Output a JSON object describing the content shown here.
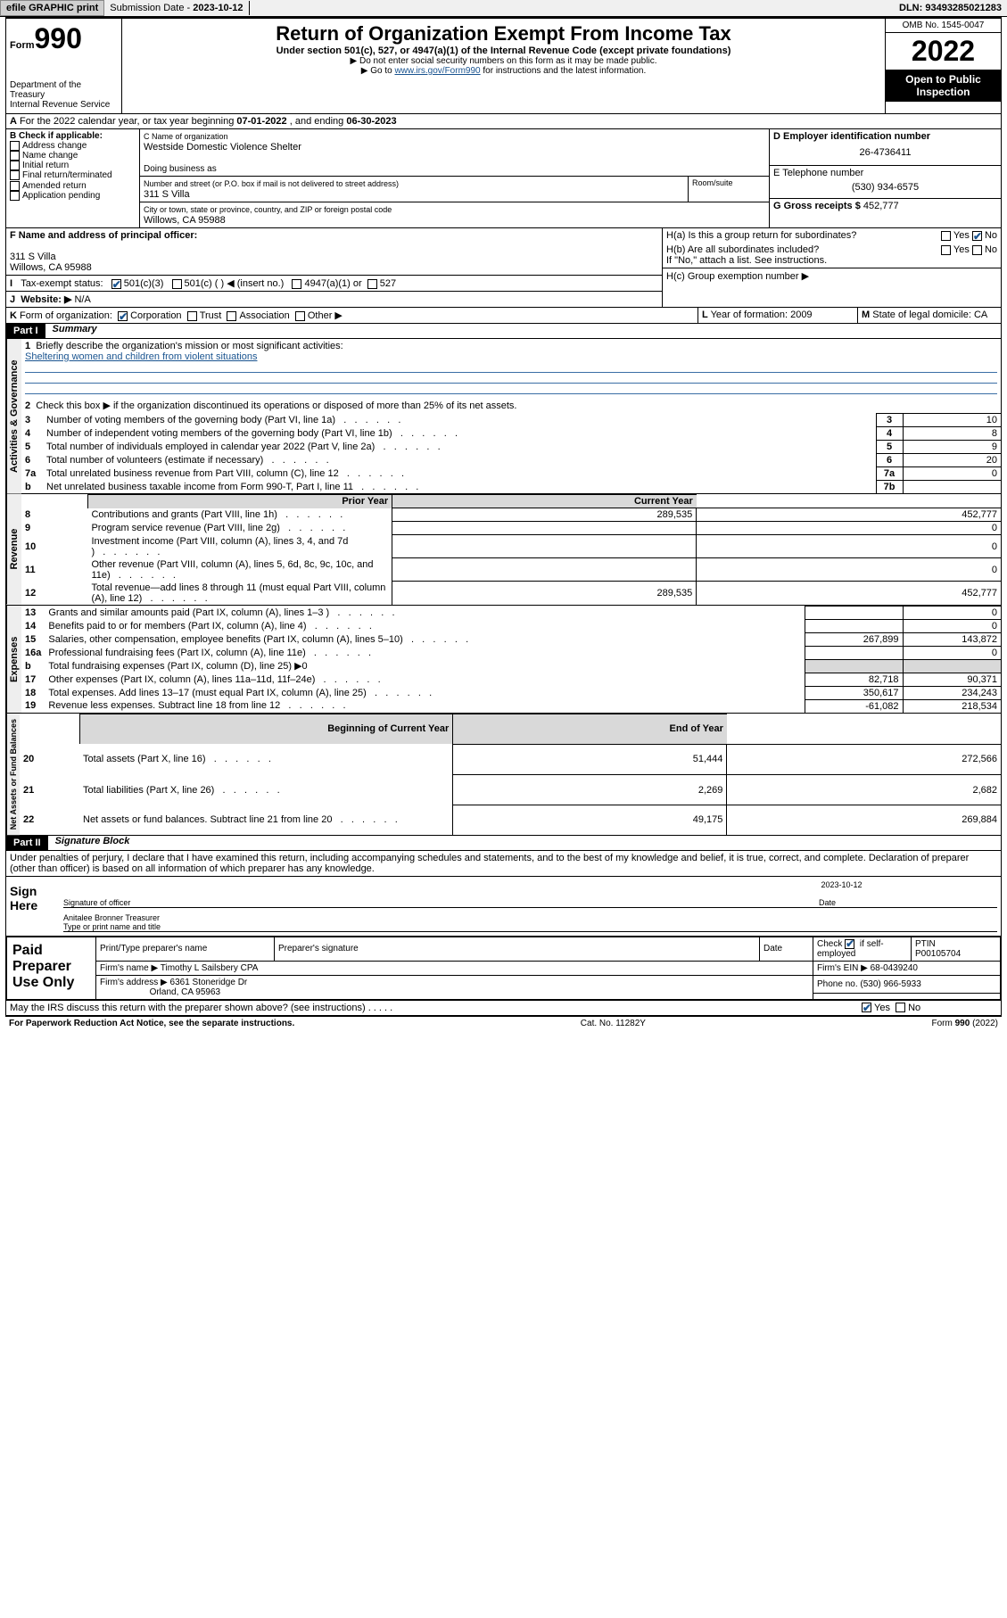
{
  "topbar": {
    "efile": "efile GRAPHIC print",
    "subdate_label": "Submission Date - ",
    "subdate": "2023-10-12",
    "dln_label": "DLN: ",
    "dln": "93493285021283"
  },
  "header": {
    "form_label": "Form",
    "form_num": "990",
    "dept": "Department of the Treasury",
    "irs": "Internal Revenue Service",
    "title": "Return of Organization Exempt From Income Tax",
    "subtitle": "Under section 501(c), 527, or 4947(a)(1) of the Internal Revenue Code (except private foundations)",
    "note1": "▶ Do not enter social security numbers on this form as it may be made public.",
    "note2_pre": "▶ Go to ",
    "note2_link": "www.irs.gov/Form990",
    "note2_post": " for instructions and the latest information.",
    "omb": "OMB No. 1545-0047",
    "year": "2022",
    "inspect": "Open to Public Inspection"
  },
  "A": {
    "text": "For the 2022 calendar year, or tax year beginning ",
    "begin": "07-01-2022",
    "mid": "   , and ending ",
    "end": "06-30-2023"
  },
  "B": {
    "label": "B Check if applicable:",
    "addr": "Address change",
    "name": "Name change",
    "init": "Initial return",
    "final": "Final return/terminated",
    "amend": "Amended return",
    "app": "Application pending"
  },
  "C": {
    "label": "C Name of organization",
    "name": "Westside Domestic Violence Shelter",
    "dba": "Doing business as",
    "street_label": "Number and street (or P.O. box if mail is not delivered to street address)",
    "room_label": "Room/suite",
    "street": "311 S Villa",
    "city_label": "City or town, state or province, country, and ZIP or foreign postal code",
    "city": "Willows, CA  95988"
  },
  "D": {
    "label": "D Employer identification number",
    "val": "26-4736411"
  },
  "E": {
    "label": "E Telephone number",
    "val": "(530) 934-6575"
  },
  "G": {
    "label": "G Gross receipts $ ",
    "val": "452,777"
  },
  "F": {
    "label": "F Name and address of principal officer:",
    "addr1": "311 S Villa",
    "addr2": "Willows, CA  95988"
  },
  "H": {
    "a": "H(a)  Is this a group return for subordinates?",
    "b": "H(b)  Are all subordinates included?",
    "b_note": "If \"No,\" attach a list. See instructions.",
    "c": "H(c)  Group exemption number ▶",
    "yes": "Yes",
    "no": "No"
  },
  "I": {
    "label": "Tax-exempt status:",
    "c1": "501(c)(3)",
    "c2": "501(c) (   ) ◀ (insert no.)",
    "c3": "4947(a)(1) or",
    "c4": "527"
  },
  "J": {
    "label": "Website: ▶",
    "val": "N/A"
  },
  "K": {
    "label": "Form of organization:",
    "corp": "Corporation",
    "trust": "Trust",
    "assoc": "Association",
    "other": "Other ▶"
  },
  "L": {
    "label": "Year of formation: ",
    "val": "2009"
  },
  "M": {
    "label": "State of legal domicile: ",
    "val": "CA"
  },
  "part1": {
    "label": "Part I",
    "title": "Summary"
  },
  "summary": {
    "q1": "Briefly describe the organization's mission or most significant activities:",
    "q1a": "Sheltering women and children from violent situations",
    "q2": "Check this box ▶       if the organization discontinued its operations or disposed of more than 25% of its net assets.",
    "rows": [
      {
        "n": "3",
        "d": "Number of voting members of the governing body (Part VI, line 1a)",
        "l": "3",
        "v": "10"
      },
      {
        "n": "4",
        "d": "Number of independent voting members of the governing body (Part VI, line 1b)",
        "l": "4",
        "v": "8"
      },
      {
        "n": "5",
        "d": "Total number of individuals employed in calendar year 2022 (Part V, line 2a)",
        "l": "5",
        "v": "9"
      },
      {
        "n": "6",
        "d": "Total number of volunteers (estimate if necessary)",
        "l": "6",
        "v": "20"
      },
      {
        "n": "7a",
        "d": "Total unrelated business revenue from Part VIII, column (C), line 12",
        "l": "7a",
        "v": "0"
      },
      {
        "n": "b",
        "d": "Net unrelated business taxable income from Form 990-T, Part I, line 11",
        "l": "7b",
        "v": ""
      }
    ],
    "py": "Prior Year",
    "cy": "Current Year",
    "rev": [
      {
        "n": "8",
        "d": "Contributions and grants (Part VIII, line 1h)",
        "p": "289,535",
        "c": "452,777"
      },
      {
        "n": "9",
        "d": "Program service revenue (Part VIII, line 2g)",
        "p": "",
        "c": "0"
      },
      {
        "n": "10",
        "d": "Investment income (Part VIII, column (A), lines 3, 4, and 7d )",
        "p": "",
        "c": "0"
      },
      {
        "n": "11",
        "d": "Other revenue (Part VIII, column (A), lines 5, 6d, 8c, 9c, 10c, and 11e)",
        "p": "",
        "c": "0"
      },
      {
        "n": "12",
        "d": "Total revenue—add lines 8 through 11 (must equal Part VIII, column (A), line 12)",
        "p": "289,535",
        "c": "452,777"
      }
    ],
    "exp": [
      {
        "n": "13",
        "d": "Grants and similar amounts paid (Part IX, column (A), lines 1–3 )",
        "p": "",
        "c": "0"
      },
      {
        "n": "14",
        "d": "Benefits paid to or for members (Part IX, column (A), line 4)",
        "p": "",
        "c": "0"
      },
      {
        "n": "15",
        "d": "Salaries, other compensation, employee benefits (Part IX, column (A), lines 5–10)",
        "p": "267,899",
        "c": "143,872"
      },
      {
        "n": "16a",
        "d": "Professional fundraising fees (Part IX, column (A), line 11e)",
        "p": "",
        "c": "0"
      },
      {
        "n": "b",
        "d": "Total fundraising expenses (Part IX, column (D), line 25) ▶0",
        "p": null,
        "c": null
      },
      {
        "n": "17",
        "d": "Other expenses (Part IX, column (A), lines 11a–11d, 11f–24e)",
        "p": "82,718",
        "c": "90,371"
      },
      {
        "n": "18",
        "d": "Total expenses. Add lines 13–17 (must equal Part IX, column (A), line 25)",
        "p": "350,617",
        "c": "234,243"
      },
      {
        "n": "19",
        "d": "Revenue less expenses. Subtract line 18 from line 12",
        "p": "-61,082",
        "c": "218,534"
      }
    ],
    "boy": "Beginning of Current Year",
    "eoy": "End of Year",
    "net": [
      {
        "n": "20",
        "d": "Total assets (Part X, line 16)",
        "p": "51,444",
        "c": "272,566"
      },
      {
        "n": "21",
        "d": "Total liabilities (Part X, line 26)",
        "p": "2,269",
        "c": "2,682"
      },
      {
        "n": "22",
        "d": "Net assets or fund balances. Subtract line 21 from line 20",
        "p": "49,175",
        "c": "269,884"
      }
    ],
    "sidelabels": {
      "gov": "Activities & Governance",
      "rev": "Revenue",
      "exp": "Expenses",
      "net": "Net Assets or Fund Balances"
    }
  },
  "part2": {
    "label": "Part II",
    "title": "Signature Block"
  },
  "sig": {
    "decl": "Under penalties of perjury, I declare that I have examined this return, including accompanying schedules and statements, and to the best of my knowledge and belief, it is true, correct, and complete. Declaration of preparer (other than officer) is based on all information of which preparer has any knowledge.",
    "here": "Sign Here",
    "sigoff": "Signature of officer",
    "date": "Date",
    "datev": "2023-10-12",
    "name": "Anitalee Bronner Treasurer",
    "nametype": "Type or print name and title"
  },
  "paid": {
    "label": "Paid Preparer Use Only",
    "h1": "Print/Type preparer's name",
    "h2": "Preparer's signature",
    "h3": "Date",
    "h4a": "Check",
    "h4b": "if self-employed",
    "h5": "PTIN",
    "ptin": "P00105704",
    "firm": "Firm's name   ▶ ",
    "firmv": "Timothy L Sailsbery CPA",
    "ein": "Firm's EIN ▶ ",
    "einv": "68-0439240",
    "addr": "Firm's address ▶ ",
    "addrv1": "6361 Stoneridge Dr",
    "addrv2": "Orland, CA  95963",
    "phone": "Phone no. ",
    "phonev": "(530) 966-5933"
  },
  "discuss": {
    "q": "May the IRS discuss this return with the preparer shown above? (see instructions)",
    "yes": "Yes",
    "no": "No"
  },
  "footer": {
    "pra": "For Paperwork Reduction Act Notice, see the separate instructions.",
    "cat": "Cat. No. 11282Y",
    "form": "Form 990 (2022)"
  }
}
